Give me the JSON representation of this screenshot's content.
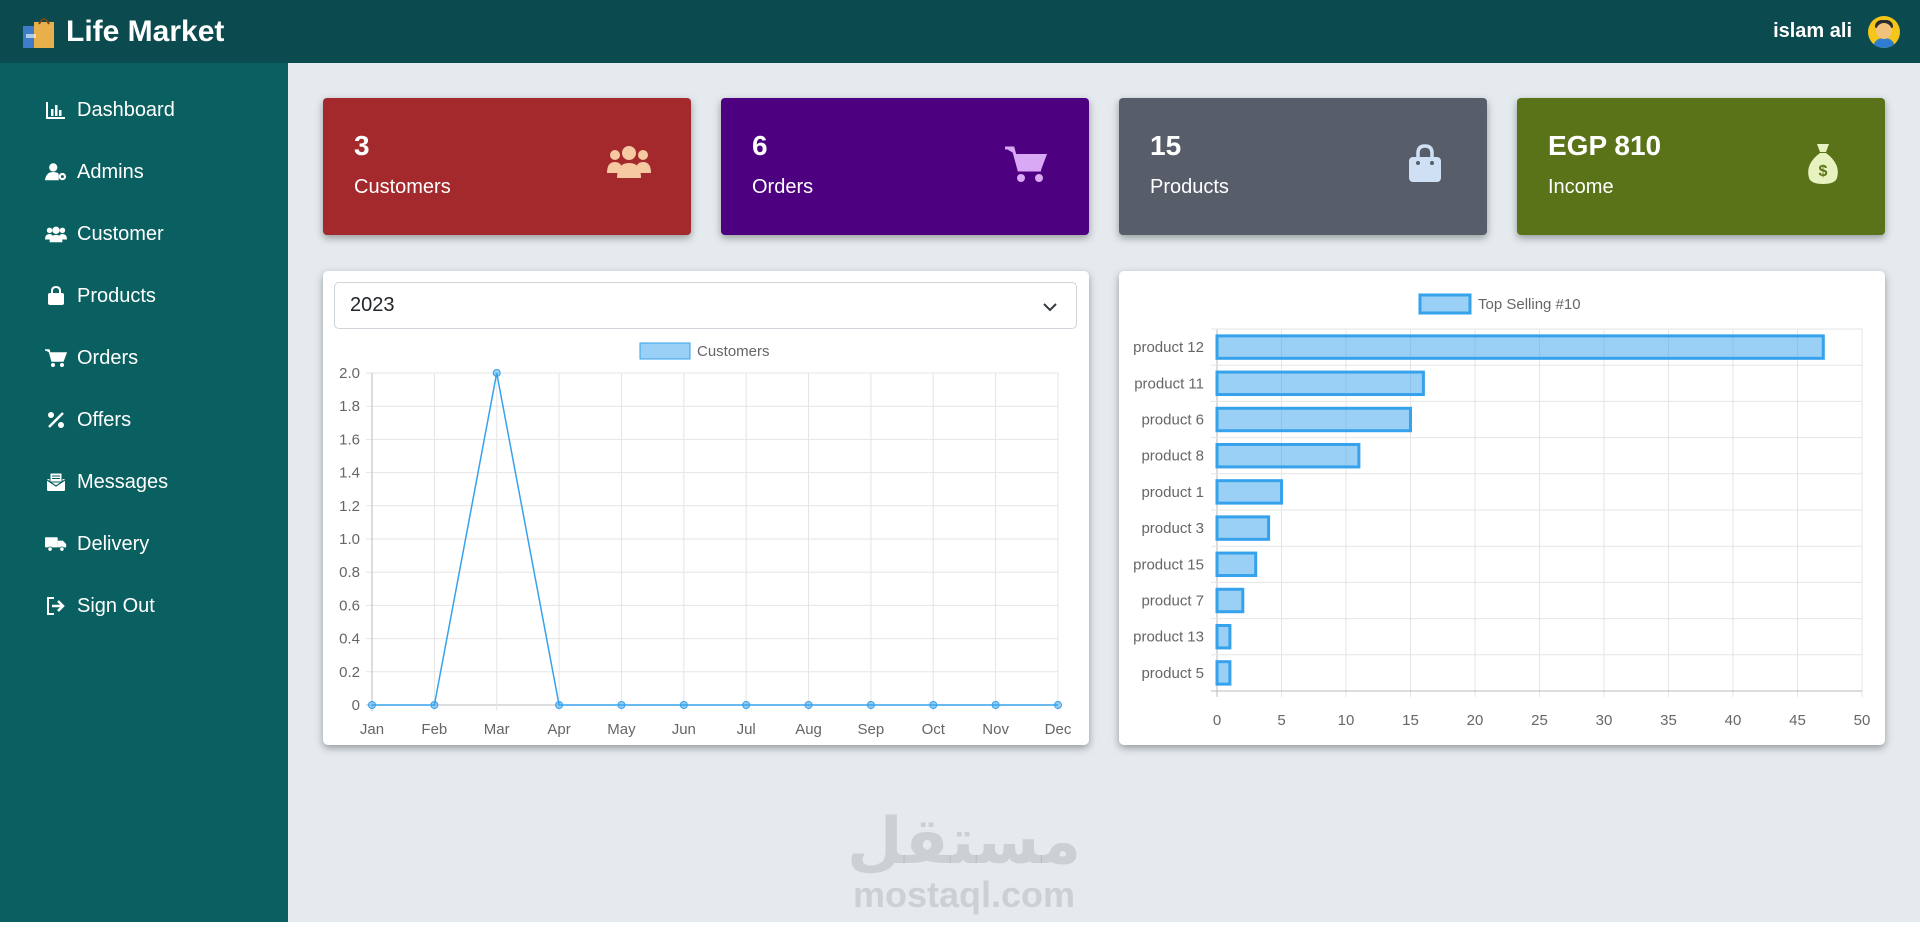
{
  "header": {
    "title": "Life Market",
    "user_name": "islam ali",
    "logo_icon": "shopping-bag-logo-icon",
    "avatar_icon": "user-avatar-icon"
  },
  "sidebar": {
    "items": [
      {
        "label": "Dashboard",
        "icon": "chart-bar-icon"
      },
      {
        "label": "Admins",
        "icon": "user-gear-icon"
      },
      {
        "label": "Customer",
        "icon": "users-icon"
      },
      {
        "label": "Products",
        "icon": "bag-icon"
      },
      {
        "label": "Orders",
        "icon": "cart-icon"
      },
      {
        "label": "Offers",
        "icon": "percent-icon"
      },
      {
        "label": "Messages",
        "icon": "envelope-icon"
      },
      {
        "label": "Delivery",
        "icon": "truck-icon"
      },
      {
        "label": "Sign Out",
        "icon": "sign-out-icon"
      }
    ]
  },
  "stats": [
    {
      "value": "3",
      "label": "Customers",
      "color": "#a3292c",
      "icon": "users-icon"
    },
    {
      "value": "6",
      "label": "Orders",
      "color": "#4d0080",
      "icon": "cart-icon"
    },
    {
      "value": "15",
      "label": "Products",
      "color": "#575e69",
      "icon": "bag-icon"
    },
    {
      "value": "EGP 810",
      "label": "Income",
      "color": "#5a7318",
      "icon": "money-bag-icon"
    }
  ],
  "year_select": {
    "value": "2023"
  },
  "watermark": {
    "arabic": "مستقل",
    "english": "mostaql.com"
  },
  "chart_data": [
    {
      "type": "line",
      "legend": [
        "Customers"
      ],
      "categories": [
        "Jan",
        "Feb",
        "Mar",
        "Apr",
        "May",
        "Jun",
        "Jul",
        "Aug",
        "Sep",
        "Oct",
        "Nov",
        "Dec"
      ],
      "series": [
        {
          "name": "Customers",
          "values": [
            0,
            0,
            2,
            0,
            0,
            0,
            0,
            0,
            0,
            0,
            0,
            0
          ]
        }
      ],
      "y_ticks": [
        "0",
        "0.2",
        "0.4",
        "0.6",
        "0.8",
        "1.0",
        "1.2",
        "1.4",
        "1.6",
        "1.8",
        "2.0"
      ],
      "ylim": [
        0,
        2
      ],
      "grid": true,
      "legend_position": "top",
      "color": "#36a2eb"
    },
    {
      "type": "bar",
      "orientation": "horizontal",
      "legend": [
        "Top Selling #10"
      ],
      "categories": [
        "product 12",
        "product 11",
        "product 6",
        "product 8",
        "product 1",
        "product 3",
        "product 15",
        "product 7",
        "product 13",
        "product 5"
      ],
      "series": [
        {
          "name": "Top Selling #10",
          "values": [
            47,
            16,
            15,
            11,
            5,
            4,
            3,
            2,
            1,
            1
          ]
        }
      ],
      "x_ticks": [
        "0",
        "5",
        "10",
        "15",
        "20",
        "25",
        "30",
        "35",
        "40",
        "45",
        "50"
      ],
      "xlim": [
        0,
        50
      ],
      "grid": true,
      "legend_position": "top",
      "color": "#36a2eb"
    }
  ]
}
